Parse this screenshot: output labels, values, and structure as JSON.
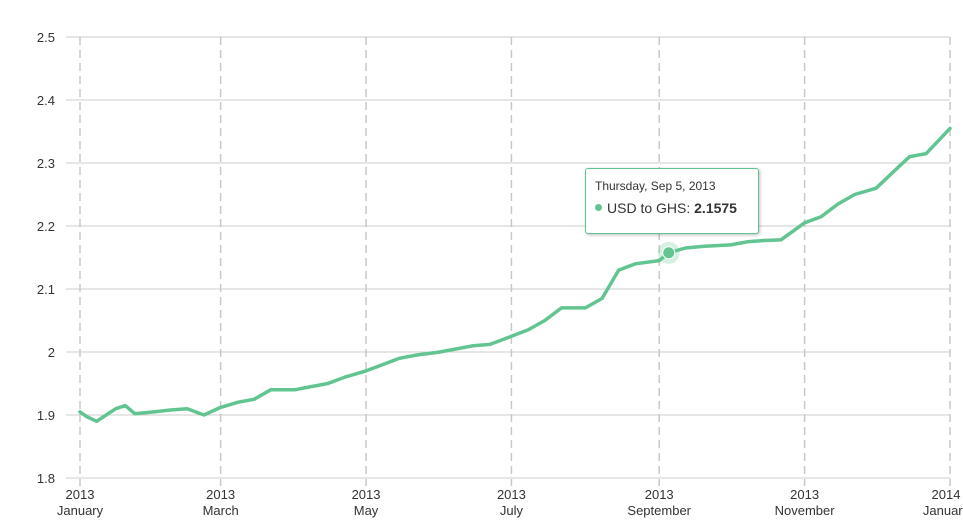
{
  "colors": {
    "series": "#62c591",
    "grid": "#cccccc",
    "vgrid": "#c8c8c8",
    "text": "#333333"
  },
  "tooltip": {
    "date": "Thursday, Sep 5, 2013",
    "series_label": "USD to GHS",
    "separator": ": ",
    "value": "2.1575"
  },
  "chart_data": {
    "type": "line",
    "title": "",
    "xlabel": "",
    "ylabel": "",
    "ylim": [
      1.8,
      2.5
    ],
    "xlim": [
      "2013-01-01",
      "2014-01-01"
    ],
    "grid": true,
    "legend": "none",
    "y_ticks": [
      "1.8",
      "1.9",
      "2",
      "2.1",
      "2.2",
      "2.3",
      "2.4",
      "2.5"
    ],
    "x_ticks": [
      {
        "date": "2013-01-01",
        "year": "2013",
        "month": "January"
      },
      {
        "date": "2013-03-01",
        "year": "2013",
        "month": "March"
      },
      {
        "date": "2013-05-01",
        "year": "2013",
        "month": "May"
      },
      {
        "date": "2013-07-01",
        "year": "2013",
        "month": "July"
      },
      {
        "date": "2013-09-01",
        "year": "2013",
        "month": "September"
      },
      {
        "date": "2013-11-01",
        "year": "2013",
        "month": "November"
      },
      {
        "date": "2014-01-01",
        "year": "2014",
        "month": "January"
      }
    ],
    "highlight": {
      "x": "2013-09-05",
      "y": 2.1575
    },
    "series": [
      {
        "name": "USD to GHS",
        "x": [
          "2013-01-01",
          "2013-01-04",
          "2013-01-08",
          "2013-01-12",
          "2013-01-16",
          "2013-01-20",
          "2013-01-24",
          "2013-02-01",
          "2013-02-08",
          "2013-02-15",
          "2013-02-22",
          "2013-03-01",
          "2013-03-08",
          "2013-03-15",
          "2013-03-22",
          "2013-04-01",
          "2013-04-08",
          "2013-04-15",
          "2013-04-22",
          "2013-05-01",
          "2013-05-08",
          "2013-05-15",
          "2013-05-22",
          "2013-06-01",
          "2013-06-08",
          "2013-06-15",
          "2013-06-22",
          "2013-07-01",
          "2013-07-08",
          "2013-07-15",
          "2013-07-22",
          "2013-08-01",
          "2013-08-08",
          "2013-08-15",
          "2013-08-22",
          "2013-09-01",
          "2013-09-05",
          "2013-09-12",
          "2013-09-20",
          "2013-10-01",
          "2013-10-08",
          "2013-10-15",
          "2013-10-22",
          "2013-11-01",
          "2013-11-08",
          "2013-11-15",
          "2013-11-22",
          "2013-12-01",
          "2013-12-08",
          "2013-12-15",
          "2013-12-22",
          "2014-01-01"
        ],
        "values": [
          1.905,
          1.897,
          1.89,
          1.9,
          1.91,
          1.915,
          1.902,
          1.905,
          1.908,
          1.91,
          1.9,
          1.912,
          1.92,
          1.925,
          1.94,
          1.94,
          1.945,
          1.95,
          1.96,
          1.97,
          1.98,
          1.99,
          1.995,
          2.0,
          2.005,
          2.01,
          2.012,
          2.025,
          2.035,
          2.05,
          2.07,
          2.07,
          2.085,
          2.13,
          2.14,
          2.145,
          2.1575,
          2.165,
          2.168,
          2.17,
          2.175,
          2.177,
          2.178,
          2.205,
          2.215,
          2.235,
          2.25,
          2.26,
          2.285,
          2.31,
          2.315,
          2.355
        ]
      }
    ]
  }
}
